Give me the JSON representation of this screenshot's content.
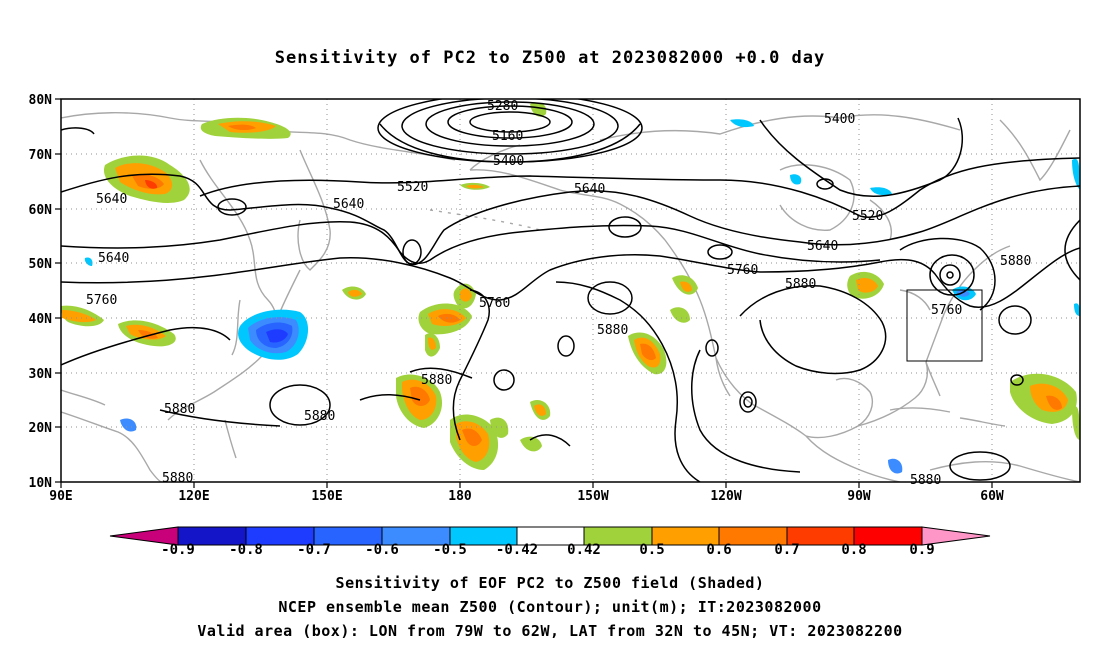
{
  "title": "Sensitivity of PC2 to Z500 at 2023082000 +0.0 day",
  "map": {
    "lat_labels": [
      "80N",
      "70N",
      "60N",
      "50N",
      "40N",
      "30N",
      "20N",
      "10N"
    ],
    "lon_labels": [
      "90E",
      "120E",
      "150E",
      "180",
      "150W",
      "120W",
      "90W",
      "60W"
    ],
    "contour_labels": [
      "5280",
      "5160",
      "5400",
      "5400",
      "5520",
      "5640",
      "5640",
      "5640",
      "5520",
      "5640",
      "5640",
      "5760",
      "5760",
      "5760",
      "5880",
      "5880",
      "5880",
      "5880",
      "5880",
      "5880",
      "5880",
      "5760",
      "5880"
    ],
    "valid_box": "79W-62W, 32N-45N"
  },
  "colorbar": {
    "ticks": [
      "-0.9",
      "-0.8",
      "-0.7",
      "-0.6",
      "-0.5",
      "-0.42",
      "0.42",
      "0.5",
      "0.6",
      "0.7",
      "0.8",
      "0.9"
    ],
    "colors": [
      "#c8007a",
      "#1414c8",
      "#1e3cff",
      "#2864ff",
      "#3c8cff",
      "#00c8ff",
      "#ffffff",
      "#a0d23c",
      "#ffa000",
      "#ff7800",
      "#ff3c00",
      "#ff0000",
      "#ff96c8"
    ]
  },
  "captions": [
    "Sensitivity of EOF PC2 to Z500 field (Shaded)",
    "NCEP ensemble mean Z500 (Contour); unit(m); IT:2023082000",
    "Valid area (box): LON from 79W to 62W, LAT from 32N to 45N; VT: 2023082200"
  ]
}
